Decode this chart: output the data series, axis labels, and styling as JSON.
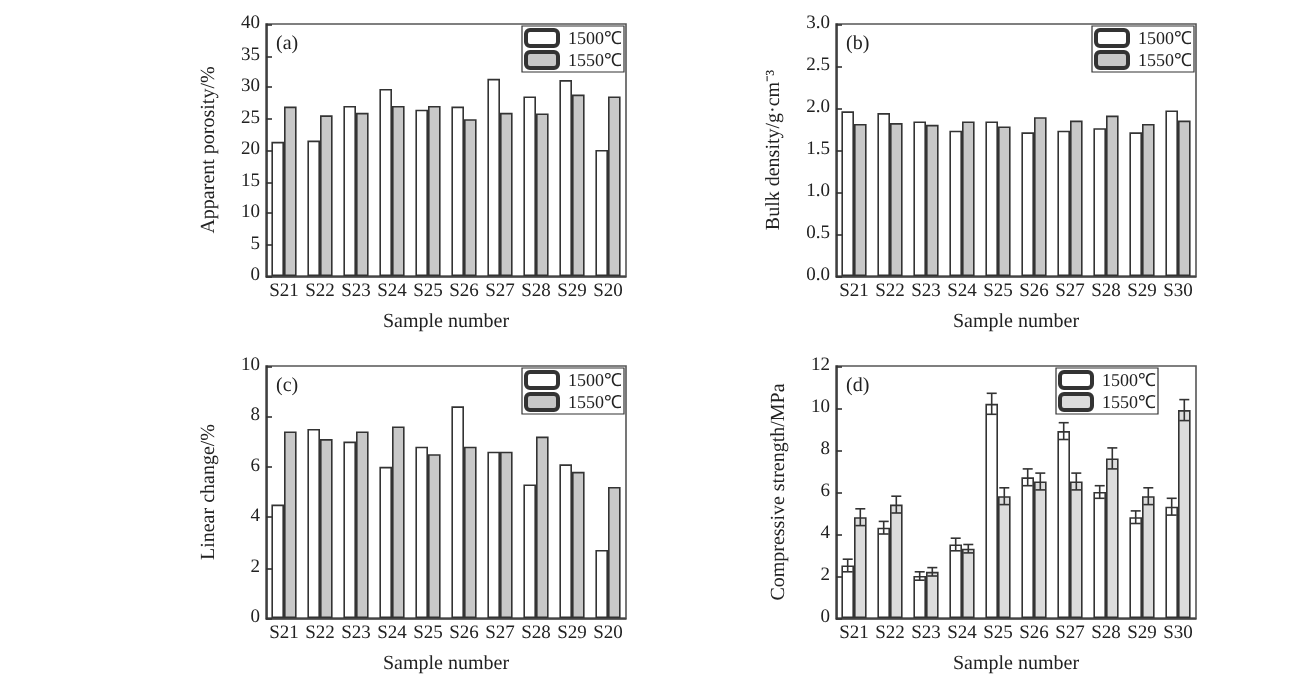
{
  "chart_data": [
    {
      "type": "bar",
      "annotations": [
        "(a)"
      ],
      "xlabel": "Sample number",
      "ylabel": "Apparent porosity/%",
      "categories": [
        "S21",
        "S22",
        "S23",
        "S24",
        "S25",
        "S26",
        "S27",
        "S28",
        "S29",
        "S20"
      ],
      "ylim": [
        0,
        40
      ],
      "yticks": [
        0,
        5,
        10,
        15,
        20,
        25,
        30,
        35,
        40
      ],
      "legend": "top right",
      "grid": false,
      "series": [
        {
          "name": "1500℃",
          "color": "#ffffff",
          "values": [
            21.3,
            21.5,
            27.0,
            29.7,
            26.4,
            26.9,
            31.3,
            28.5,
            31.1,
            20.0
          ]
        },
        {
          "name": "1550℃",
          "color": "#c8c8c8",
          "values": [
            26.9,
            25.5,
            25.9,
            27.0,
            27.0,
            24.9,
            25.9,
            25.8,
            28.8,
            28.5
          ]
        }
      ]
    },
    {
      "type": "bar",
      "annotations": [
        "(b)"
      ],
      "xlabel": "Sample number",
      "ylabel": "Bulk density/g·cm⁻³",
      "categories": [
        "S21",
        "S22",
        "S23",
        "S24",
        "S25",
        "S26",
        "S27",
        "S28",
        "S29",
        "S30"
      ],
      "ylim": [
        0,
        3
      ],
      "yticks": [
        {
          "value": 0,
          "label": "0.0"
        },
        {
          "value": 0.5,
          "label": "0.5"
        },
        {
          "value": 1,
          "label": "1.0"
        },
        {
          "value": 1.5,
          "label": "1.5"
        },
        {
          "value": 2,
          "label": "2.0"
        },
        {
          "value": 2.5,
          "label": "2.5"
        },
        {
          "value": 3,
          "label": "3.0"
        }
      ],
      "legend": "top right",
      "grid": false,
      "series": [
        {
          "name": "1500℃",
          "color": "#ffffff",
          "values": [
            1.96,
            1.94,
            1.84,
            1.73,
            1.84,
            1.71,
            1.73,
            1.76,
            1.71,
            1.97
          ]
        },
        {
          "name": "1550℃",
          "color": "#c8c8c8",
          "values": [
            1.81,
            1.82,
            1.8,
            1.84,
            1.78,
            1.89,
            1.85,
            1.91,
            1.81,
            1.85
          ]
        }
      ]
    },
    {
      "type": "bar",
      "annotations": [
        "(c)"
      ],
      "xlabel": "Sample number",
      "ylabel": "Linear change/%",
      "categories": [
        "S21",
        "S22",
        "S23",
        "S24",
        "S25",
        "S26",
        "S27",
        "S28",
        "S29",
        "S20"
      ],
      "ylim": [
        0,
        10
      ],
      "yticks": [
        0,
        2,
        4,
        6,
        8,
        10
      ],
      "legend": "top right",
      "grid": false,
      "series": [
        {
          "name": "1500℃",
          "color": "#ffffff",
          "values": [
            4.5,
            7.5,
            7.0,
            6.0,
            6.8,
            8.4,
            6.6,
            5.3,
            6.1,
            2.7
          ]
        },
        {
          "name": "1550℃",
          "color": "#c8c8c8",
          "values": [
            7.4,
            7.1,
            7.4,
            7.6,
            6.5,
            6.8,
            6.6,
            7.2,
            5.8,
            5.2
          ]
        }
      ]
    },
    {
      "type": "bar",
      "annotations": [
        "(d)"
      ],
      "xlabel": "Sample number",
      "ylabel": "Compressive strength/MPa",
      "categories": [
        "S21",
        "S22",
        "S23",
        "S24",
        "S25",
        "S26",
        "S27",
        "S28",
        "S29",
        "S30"
      ],
      "ylim": [
        0,
        12
      ],
      "yticks": [
        0,
        2,
        4,
        6,
        8,
        10,
        12
      ],
      "legend": "top right",
      "grid": false,
      "series": [
        {
          "name": "1500℃",
          "color": "#ffffff",
          "values": [
            2.5,
            4.3,
            2.0,
            3.5,
            10.2,
            6.7,
            8.9,
            6.0,
            4.8,
            5.3
          ],
          "errors": [
            0.3,
            0.3,
            0.2,
            0.3,
            0.5,
            0.4,
            0.4,
            0.3,
            0.3,
            0.4
          ]
        },
        {
          "name": "1550℃",
          "color": "#dcdcdc",
          "values": [
            4.8,
            5.4,
            2.2,
            3.3,
            5.8,
            6.5,
            6.5,
            7.6,
            5.8,
            9.9
          ],
          "errors": [
            0.4,
            0.4,
            0.2,
            0.2,
            0.4,
            0.4,
            0.4,
            0.5,
            0.4,
            0.5
          ]
        }
      ]
    }
  ]
}
